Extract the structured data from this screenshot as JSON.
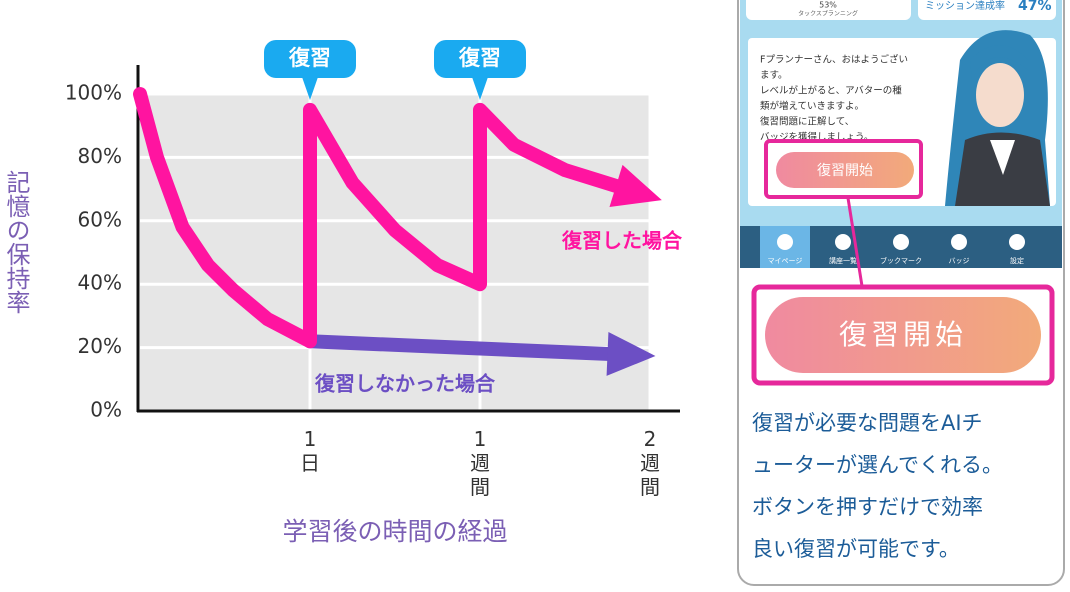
{
  "chart_data": {
    "type": "line",
    "y_axis_label": "記憶の保持率",
    "x_axis_label": "学習後の時間の経過",
    "categories": [
      null,
      "1日",
      "1週間",
      "2週間"
    ],
    "xlim": [
      0,
      3.1
    ],
    "ylim": [
      0,
      100
    ],
    "yticks": [
      {
        "value": 0,
        "label": "0%"
      },
      {
        "value": 20,
        "label": "20%"
      },
      {
        "value": 40,
        "label": "40%"
      },
      {
        "value": 60,
        "label": "60%"
      },
      {
        "value": 80,
        "label": "80%"
      },
      {
        "value": 100,
        "label": "100%"
      }
    ],
    "grid": true,
    "series": [
      {
        "name": "復習した場合",
        "color": "#ff14a0",
        "x": [
          0,
          0.1,
          0.25,
          0.4,
          0.55,
          0.75,
          1,
          1,
          1.25,
          1.5,
          1.75,
          2,
          2,
          2.2,
          2.5,
          2.8
        ],
        "values": [
          100,
          80,
          58,
          46,
          38,
          29,
          22,
          95,
          72,
          57,
          46,
          40,
          95,
          84,
          76,
          71
        ]
      },
      {
        "name": "復習しなかった場合",
        "color": "#6c4fc4",
        "x": [
          1,
          2.75
        ],
        "values": [
          22,
          18
        ]
      }
    ],
    "annotations": [
      {
        "text": "復習",
        "x": 1
      },
      {
        "text": "復習",
        "x": 2
      }
    ]
  },
  "phone": {
    "top_left": {
      "value": "53%",
      "label": "タックスプランニング"
    },
    "top_right": {
      "label": "ミッション達成率",
      "value": "47%"
    },
    "message": [
      "Fプランナーさん、おはようござい",
      "ます。",
      "レベルが上がると、アバターの種",
      "類が増えていきますよ。",
      "復習問題に正解して、",
      "バッジを獲得しましょう。"
    ],
    "small_button": "復習開始",
    "nav": [
      "マイページ",
      "講座一覧",
      "ブックマーク",
      "バッジ",
      "設定"
    ],
    "big_button": "復習開始",
    "caption": [
      "復習が必要な問題をAIチ",
      "ューターが選んでくれる。",
      "ボタンを押すだけで効率",
      "良い復習が可能です。"
    ]
  }
}
